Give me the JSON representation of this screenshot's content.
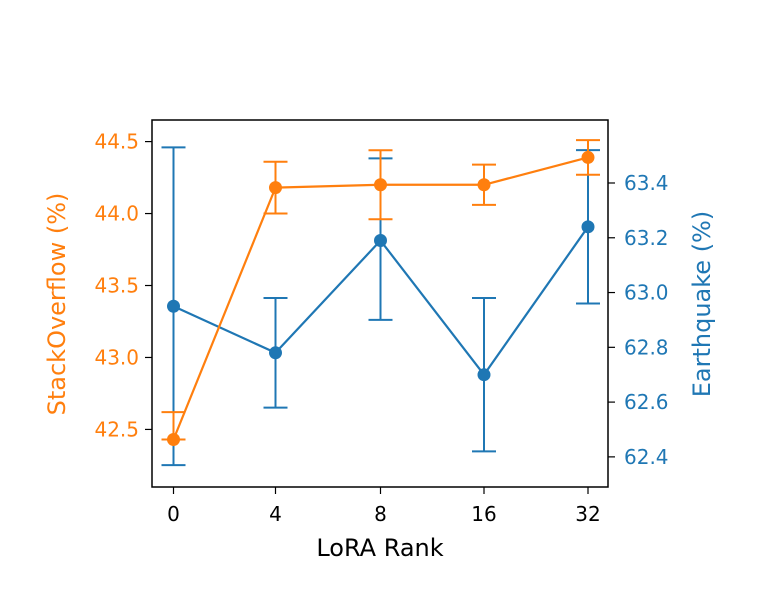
{
  "chart_data": {
    "type": "line",
    "title": "",
    "xlabel": "LoRA Rank",
    "categories": [
      "0",
      "4",
      "8",
      "16",
      "32"
    ],
    "ylabel_left": "StackOverflow (%)",
    "ylabel_right": "Earthquake (%)",
    "ylim_left": [
      42.1,
      44.65
    ],
    "ylim_right": [
      62.29,
      63.63
    ],
    "yticks_left": [
      "42.5",
      "43.0",
      "43.5",
      "44.0",
      "44.5"
    ],
    "yticks_right": [
      "62.4",
      "62.6",
      "62.8",
      "63.0",
      "63.2",
      "63.4"
    ],
    "grid": false,
    "series": [
      {
        "name": "StackOverflow",
        "axis": "left",
        "color": "#ff7f0e",
        "values": [
          42.43,
          44.18,
          44.2,
          44.2,
          44.39
        ],
        "err_low": [
          42.43,
          44.0,
          43.96,
          44.06,
          44.27
        ],
        "err_high": [
          42.62,
          44.36,
          44.44,
          44.34,
          44.51
        ]
      },
      {
        "name": "Earthquake",
        "axis": "right",
        "color": "#1f77b4",
        "values": [
          62.95,
          62.78,
          63.19,
          62.7,
          63.24
        ],
        "err_low": [
          62.37,
          62.58,
          62.9,
          62.42,
          62.96
        ],
        "err_high": [
          63.53,
          62.98,
          63.49,
          62.98,
          63.52
        ]
      }
    ],
    "colors": {
      "axis": "#000000",
      "left_label": "#ff7f0e",
      "right_label": "#1f77b4"
    }
  }
}
